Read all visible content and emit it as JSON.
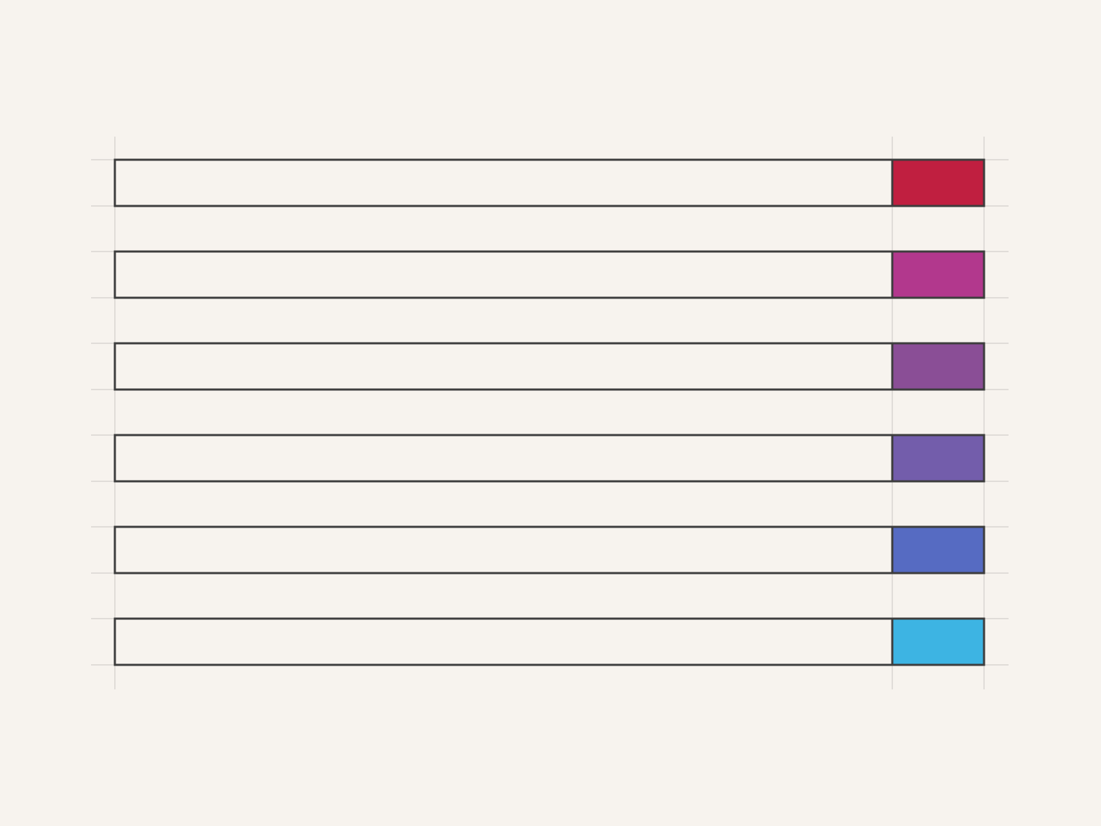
{
  "rows": [
    {
      "color": "#c01f40"
    },
    {
      "color": "#b2388d"
    },
    {
      "color": "#8a4e96"
    },
    {
      "color": "#735dab"
    },
    {
      "color": "#566bc2"
    },
    {
      "color": "#3db4e3"
    }
  ]
}
